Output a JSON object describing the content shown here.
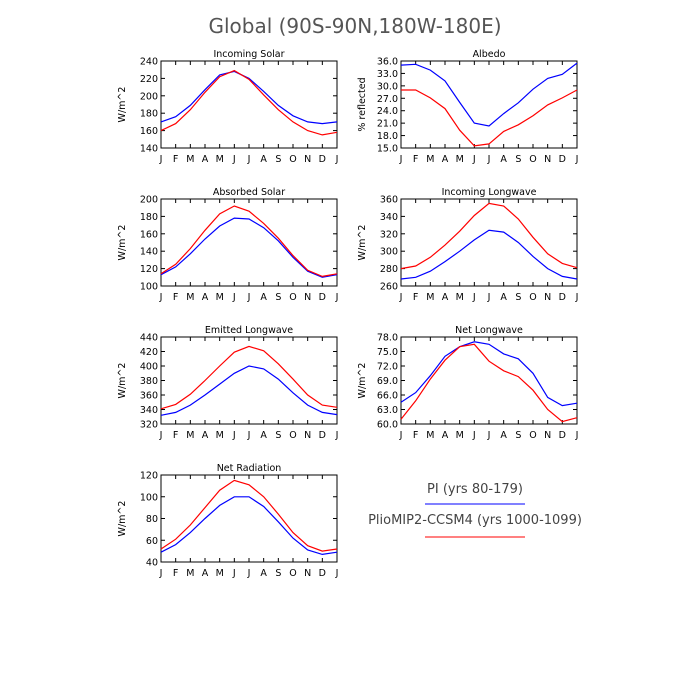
{
  "title": "Global (90S-90N,180W-180E)",
  "legend": {
    "items": [
      {
        "label": "PI (yrs 80-179)",
        "color": "#0000ff"
      },
      {
        "label": "PlioMIP2-CCSM4 (yrs 1000-1099)",
        "color": "#ff0000"
      }
    ]
  },
  "chart_data": [
    {
      "type": "line",
      "title": "Incoming Solar",
      "ylabel": "W/m^2",
      "categories": [
        "J",
        "F",
        "M",
        "A",
        "M",
        "J",
        "J",
        "A",
        "S",
        "O",
        "N",
        "D",
        "J"
      ],
      "ylim": [
        140,
        240
      ],
      "yticks": [
        "140",
        "160",
        "180",
        "200",
        "220",
        "240"
      ],
      "series": [
        {
          "name": "PI (yrs 80-179)",
          "color": "#0000ff",
          "values": [
            170,
            176,
            189,
            207,
            224,
            228,
            220,
            205,
            189,
            177,
            170,
            168,
            170
          ]
        },
        {
          "name": "PlioMIP2-CCSM4 (yrs 1000-1099)",
          "color": "#ff0000",
          "values": [
            160,
            168,
            184,
            204,
            222,
            229,
            219,
            201,
            184,
            170,
            160,
            155,
            158
          ]
        }
      ]
    },
    {
      "type": "line",
      "title": "Albedo",
      "ylabel": "% reflected",
      "categories": [
        "J",
        "F",
        "M",
        "A",
        "M",
        "J",
        "J",
        "A",
        "S",
        "O",
        "N",
        "D",
        "J"
      ],
      "ylim": [
        15.0,
        36.0
      ],
      "yticks": [
        "15.0",
        "18.0",
        "21.0",
        "24.0",
        "27.0",
        "30.0",
        "33.0",
        "36.0"
      ],
      "series": [
        {
          "name": "PI (yrs 80-179)",
          "color": "#0000ff",
          "values": [
            35.0,
            35.2,
            33.8,
            31.2,
            26.0,
            21.0,
            20.3,
            23.3,
            25.9,
            29.2,
            31.8,
            32.8,
            35.5
          ]
        },
        {
          "name": "PlioMIP2-CCSM4 (yrs 1000-1099)",
          "color": "#ff0000",
          "values": [
            29.0,
            29.0,
            27.1,
            24.5,
            19.3,
            15.5,
            16.0,
            19.0,
            20.6,
            22.8,
            25.4,
            27.1,
            29.0
          ]
        }
      ]
    },
    {
      "type": "line",
      "title": "Absorbed Solar",
      "ylabel": "W/m^2",
      "categories": [
        "J",
        "F",
        "M",
        "A",
        "M",
        "J",
        "J",
        "A",
        "S",
        "O",
        "N",
        "D",
        "J"
      ],
      "ylim": [
        100,
        200
      ],
      "yticks": [
        "100",
        "120",
        "140",
        "160",
        "180",
        "200"
      ],
      "series": [
        {
          "name": "PI (yrs 80-179)",
          "color": "#0000ff",
          "values": [
            113,
            122,
            137,
            154,
            169,
            178,
            177,
            167,
            152,
            133,
            117,
            110,
            113
          ]
        },
        {
          "name": "PlioMIP2-CCSM4 (yrs 1000-1099)",
          "color": "#ff0000",
          "values": [
            114,
            125,
            143,
            164,
            183,
            192,
            186,
            172,
            155,
            135,
            118,
            111,
            114
          ]
        }
      ]
    },
    {
      "type": "line",
      "title": "Incoming Longwave",
      "ylabel": "W/m^2",
      "categories": [
        "J",
        "F",
        "M",
        "A",
        "M",
        "J",
        "J",
        "A",
        "S",
        "O",
        "N",
        "D",
        "J"
      ],
      "ylim": [
        260,
        360
      ],
      "yticks": [
        "260",
        "280",
        "300",
        "320",
        "340",
        "360"
      ],
      "series": [
        {
          "name": "PI (yrs 80-179)",
          "color": "#0000ff",
          "values": [
            268,
            270,
            277,
            288,
            300,
            313,
            324,
            322,
            310,
            294,
            280,
            271,
            268
          ]
        },
        {
          "name": "PlioMIP2-CCSM4 (yrs 1000-1099)",
          "color": "#ff0000",
          "values": [
            280,
            283,
            293,
            307,
            323,
            341,
            355,
            352,
            337,
            316,
            297,
            286,
            281
          ]
        }
      ]
    },
    {
      "type": "line",
      "title": "Emitted Longwave",
      "ylabel": "W/m^2",
      "categories": [
        "J",
        "F",
        "M",
        "A",
        "M",
        "J",
        "J",
        "A",
        "S",
        "O",
        "N",
        "D",
        "J"
      ],
      "ylim": [
        320,
        440
      ],
      "yticks": [
        "320",
        "340",
        "360",
        "380",
        "400",
        "420",
        "440"
      ],
      "series": [
        {
          "name": "PI (yrs 80-179)",
          "color": "#0000ff",
          "values": [
            332,
            336,
            346,
            360,
            375,
            390,
            400,
            396,
            382,
            363,
            346,
            336,
            333
          ]
        },
        {
          "name": "PlioMIP2-CCSM4 (yrs 1000-1099)",
          "color": "#ff0000",
          "values": [
            341,
            347,
            361,
            380,
            400,
            419,
            427,
            421,
            403,
            382,
            360,
            346,
            343
          ]
        }
      ]
    },
    {
      "type": "line",
      "title": "Net Longwave",
      "ylabel": "W/m^2",
      "categories": [
        "J",
        "F",
        "M",
        "A",
        "M",
        "J",
        "J",
        "A",
        "S",
        "O",
        "N",
        "D",
        "J"
      ],
      "ylim": [
        60.0,
        78.0
      ],
      "yticks": [
        "60.0",
        "63.0",
        "66.0",
        "69.0",
        "72.0",
        "75.0",
        "78.0"
      ],
      "series": [
        {
          "name": "PI (yrs 80-179)",
          "color": "#0000ff",
          "values": [
            64.5,
            66.5,
            70.0,
            74.0,
            76.0,
            77.0,
            76.5,
            74.5,
            73.5,
            70.5,
            65.5,
            63.8,
            64.3
          ]
        },
        {
          "name": "PlioMIP2-CCSM4 (yrs 1000-1099)",
          "color": "#ff0000",
          "values": [
            61.0,
            64.8,
            69.3,
            73.2,
            76.0,
            76.5,
            73.0,
            71.0,
            69.8,
            67.0,
            63.0,
            60.5,
            61.3
          ]
        }
      ]
    },
    {
      "type": "line",
      "title": "Net Radiation",
      "ylabel": "W/m^2",
      "categories": [
        "J",
        "F",
        "M",
        "A",
        "M",
        "J",
        "J",
        "A",
        "S",
        "O",
        "N",
        "D",
        "J"
      ],
      "ylim": [
        40,
        120
      ],
      "yticks": [
        "40",
        "60",
        "80",
        "100",
        "120"
      ],
      "series": [
        {
          "name": "PI (yrs 80-179)",
          "color": "#0000ff",
          "values": [
            49,
            56,
            67,
            80,
            92,
            100,
            100,
            91,
            77,
            62,
            51,
            47,
            49
          ]
        },
        {
          "name": "PlioMIP2-CCSM4 (yrs 1000-1099)",
          "color": "#ff0000",
          "values": [
            52,
            61,
            74,
            90,
            106,
            115,
            111,
            100,
            84,
            67,
            55,
            50,
            52
          ]
        }
      ]
    }
  ]
}
